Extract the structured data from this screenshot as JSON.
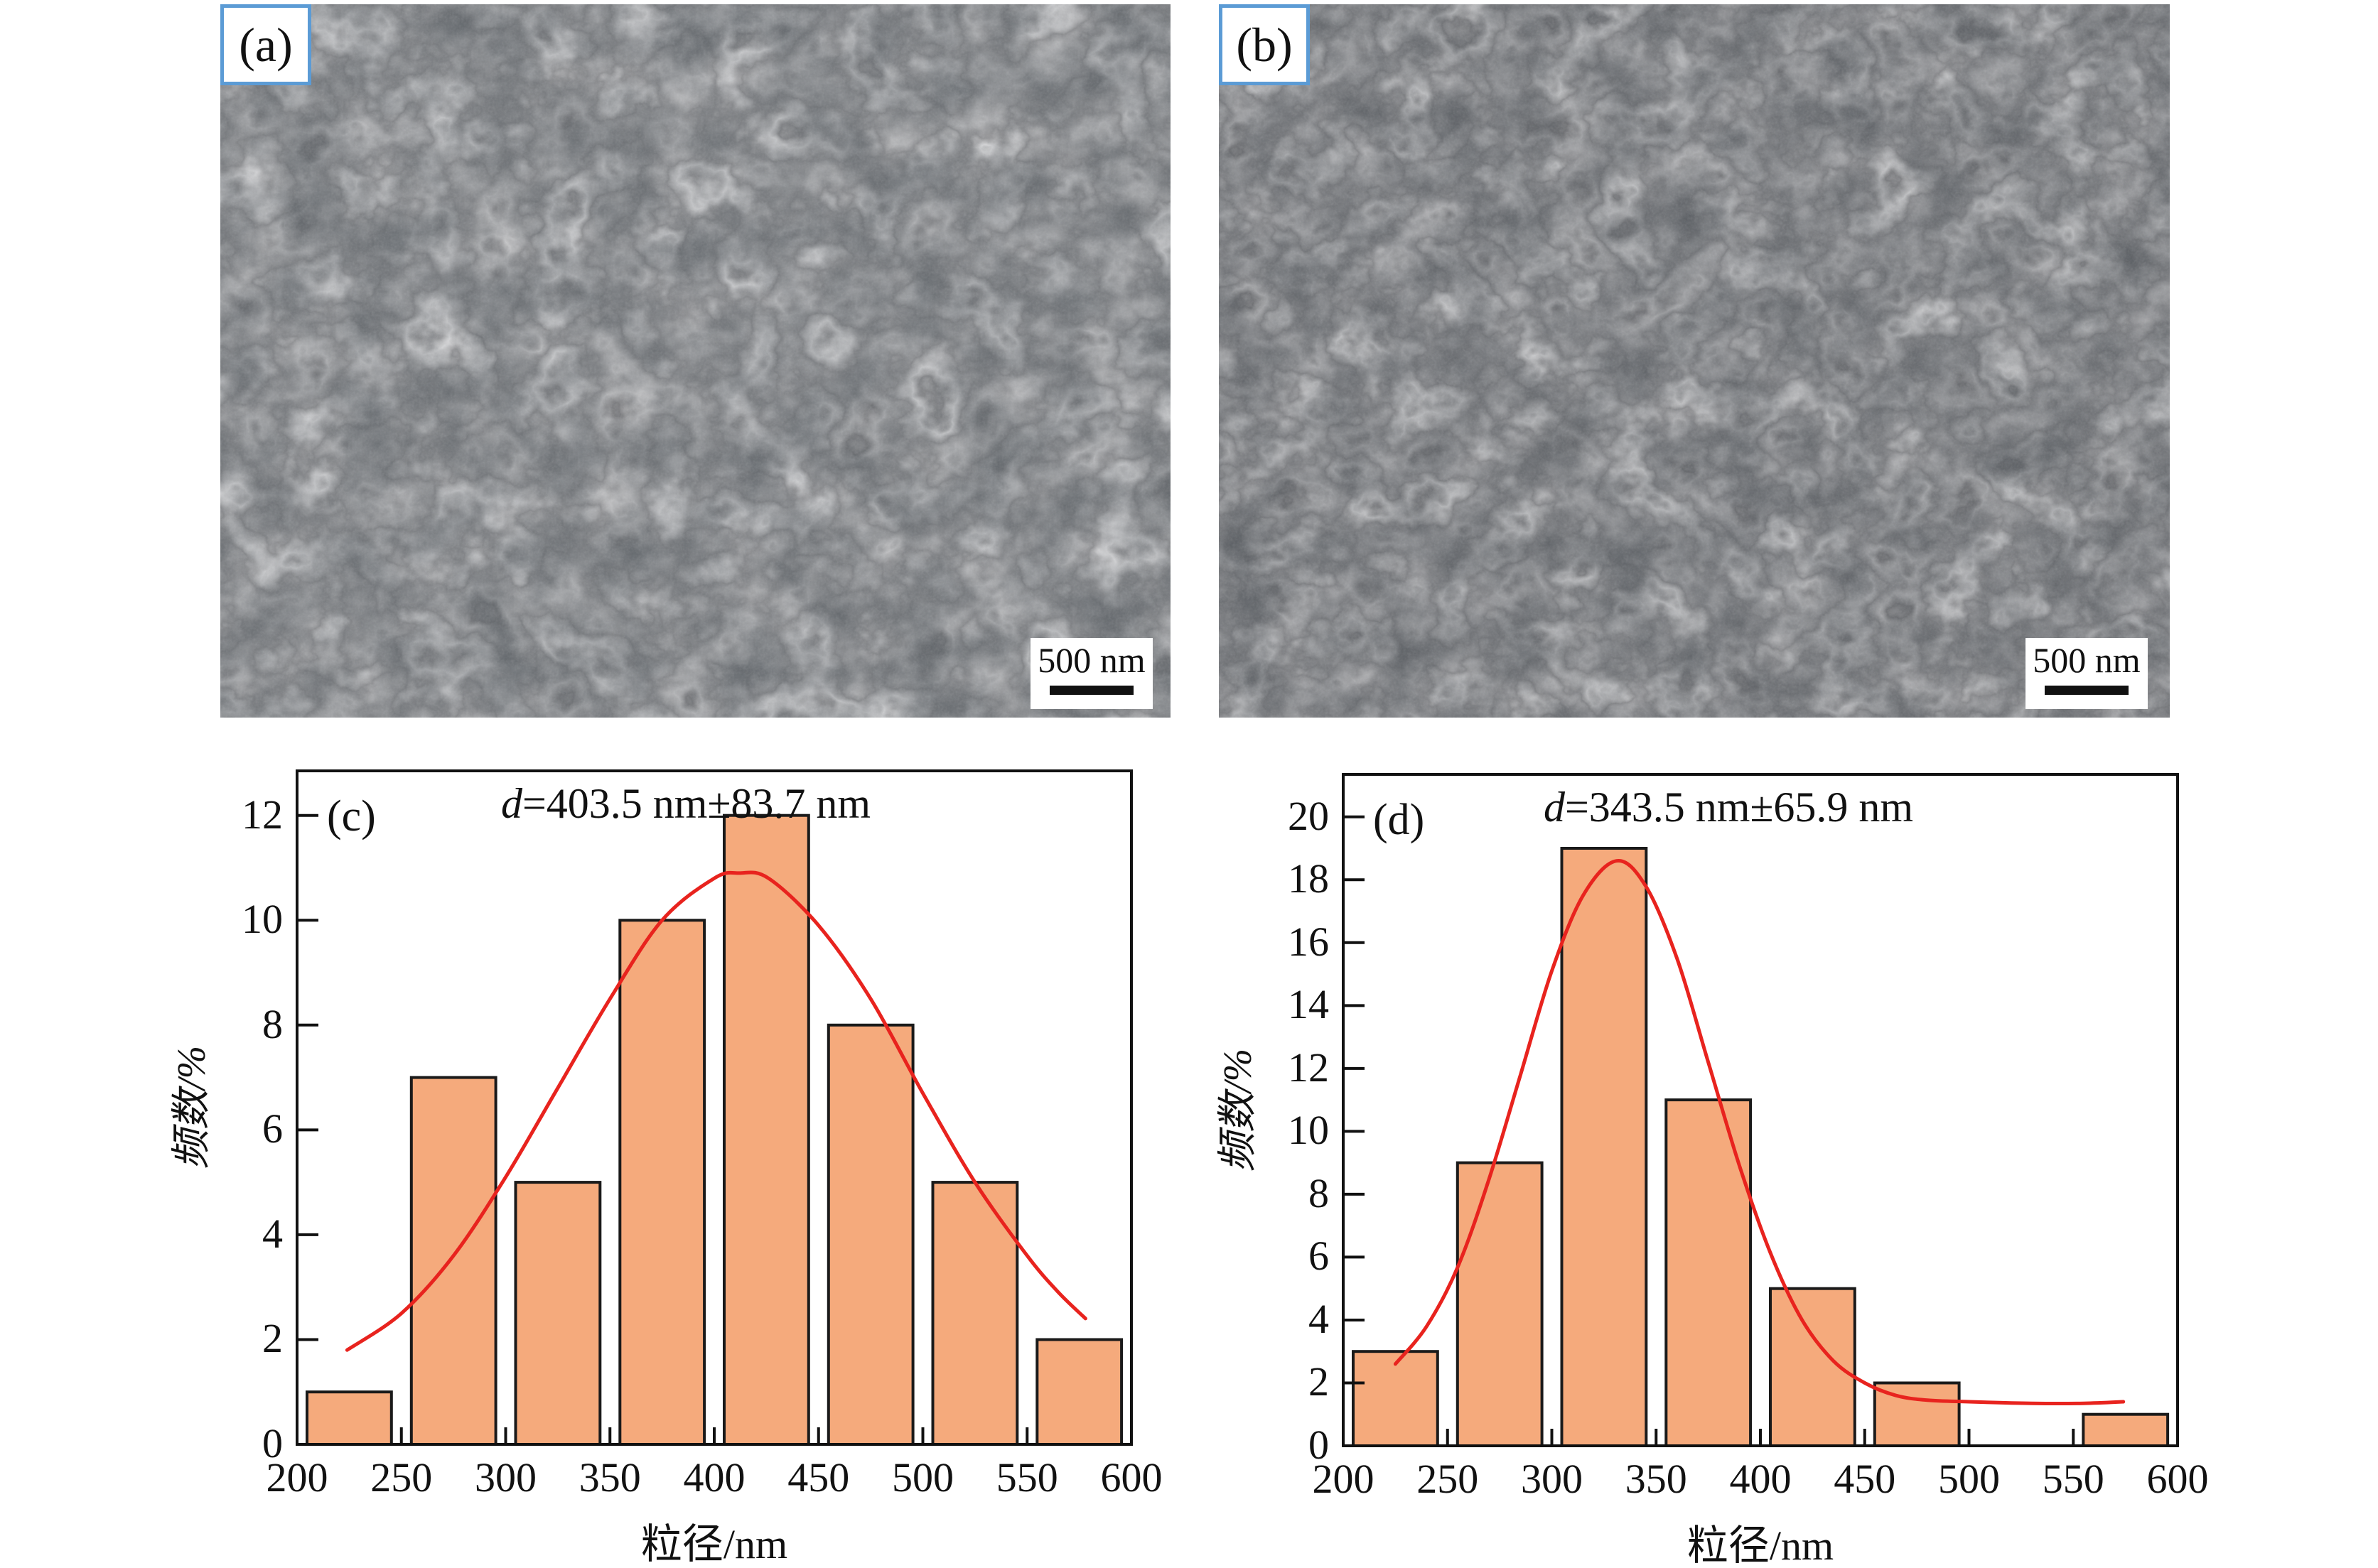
{
  "figure": {
    "panels": {
      "a": {
        "label": "(a)",
        "scale_bar": "500 nm",
        "kind": "SEM micrograph"
      },
      "b": {
        "label": "(b)",
        "scale_bar": "500 nm",
        "kind": "SEM micrograph"
      }
    },
    "colors": {
      "label_box_border": "#5b9bd5",
      "bar_fill": "#f5aa7c",
      "bar_stroke": "#1a1a1a",
      "fit_curve_red": "#e8231e",
      "axis_black": "#111111",
      "background": "#ffffff"
    }
  },
  "chart_data": [
    {
      "id": "c",
      "type": "bar",
      "panel_label": "(c)",
      "title": "d=403.5 nm±83.7 nm",
      "title_italic_prefix": "d",
      "title_rest": "=403.5 nm±83.7 nm",
      "mean_nm": 403.5,
      "sd_nm": 83.7,
      "xlabel": "粒径/nm",
      "ylabel": "频数/%",
      "bins_nm": [
        [
          200,
          250
        ],
        [
          250,
          300
        ],
        [
          300,
          350
        ],
        [
          350,
          400
        ],
        [
          400,
          450
        ],
        [
          450,
          500
        ],
        [
          500,
          550
        ],
        [
          550,
          600
        ]
      ],
      "values_percent": [
        1,
        7,
        5,
        10,
        12,
        8,
        5,
        2
      ],
      "xlim": [
        200,
        600
      ],
      "ylim": [
        0,
        12.85
      ],
      "x_ticks": [
        200,
        250,
        300,
        350,
        400,
        450,
        500,
        550,
        600
      ],
      "y_ticks": [
        0,
        2,
        4,
        6,
        8,
        10,
        12
      ],
      "grid": false,
      "legend": false,
      "fit_curve": {
        "shape": "gaussian",
        "color": "#e8231e",
        "points": [
          [
            224,
            1.8
          ],
          [
            250,
            2.5
          ],
          [
            275,
            3.6
          ],
          [
            300,
            5.1
          ],
          [
            325,
            6.8
          ],
          [
            350,
            8.5
          ],
          [
            375,
            10.0
          ],
          [
            400,
            10.8
          ],
          [
            412,
            10.9
          ],
          [
            426,
            10.8
          ],
          [
            450,
            9.9
          ],
          [
            475,
            8.5
          ],
          [
            500,
            6.7
          ],
          [
            525,
            5.0
          ],
          [
            550,
            3.6
          ],
          [
            565,
            2.9
          ],
          [
            578,
            2.4
          ]
        ]
      }
    },
    {
      "id": "d",
      "type": "bar",
      "panel_label": "(d)",
      "title": "d=343.5 nm±65.9 nm",
      "title_italic_prefix": "d",
      "title_rest": "=343.5 nm±65.9 nm",
      "mean_nm": 343.5,
      "sd_nm": 65.9,
      "xlabel": "粒径/nm",
      "ylabel": "频数/%",
      "bins_nm": [
        [
          200,
          250
        ],
        [
          250,
          300
        ],
        [
          300,
          350
        ],
        [
          350,
          400
        ],
        [
          400,
          450
        ],
        [
          450,
          500
        ],
        [
          500,
          550
        ],
        [
          550,
          600
        ]
      ],
      "values_percent": [
        3,
        9,
        19,
        11,
        5,
        2,
        0,
        1
      ],
      "xlim": [
        200,
        600
      ],
      "ylim": [
        0,
        21.35
      ],
      "x_ticks": [
        200,
        250,
        300,
        350,
        400,
        450,
        500,
        550,
        600
      ],
      "y_ticks": [
        0,
        2,
        4,
        6,
        8,
        10,
        12,
        14,
        16,
        18,
        20
      ],
      "grid": false,
      "legend": false,
      "fit_curve": {
        "shape": "gaussian",
        "color": "#e8231e",
        "points": [
          [
            225,
            2.6
          ],
          [
            240,
            3.8
          ],
          [
            255,
            5.7
          ],
          [
            270,
            8.5
          ],
          [
            285,
            11.8
          ],
          [
            300,
            15.1
          ],
          [
            315,
            17.5
          ],
          [
            331,
            18.6
          ],
          [
            345,
            17.8
          ],
          [
            360,
            15.5
          ],
          [
            375,
            12.2
          ],
          [
            390,
            8.9
          ],
          [
            405,
            6.1
          ],
          [
            420,
            4.0
          ],
          [
            435,
            2.7
          ],
          [
            450,
            2.0
          ],
          [
            465,
            1.6
          ],
          [
            480,
            1.45
          ],
          [
            500,
            1.4
          ],
          [
            530,
            1.35
          ],
          [
            555,
            1.35
          ],
          [
            574,
            1.4
          ]
        ]
      }
    }
  ]
}
